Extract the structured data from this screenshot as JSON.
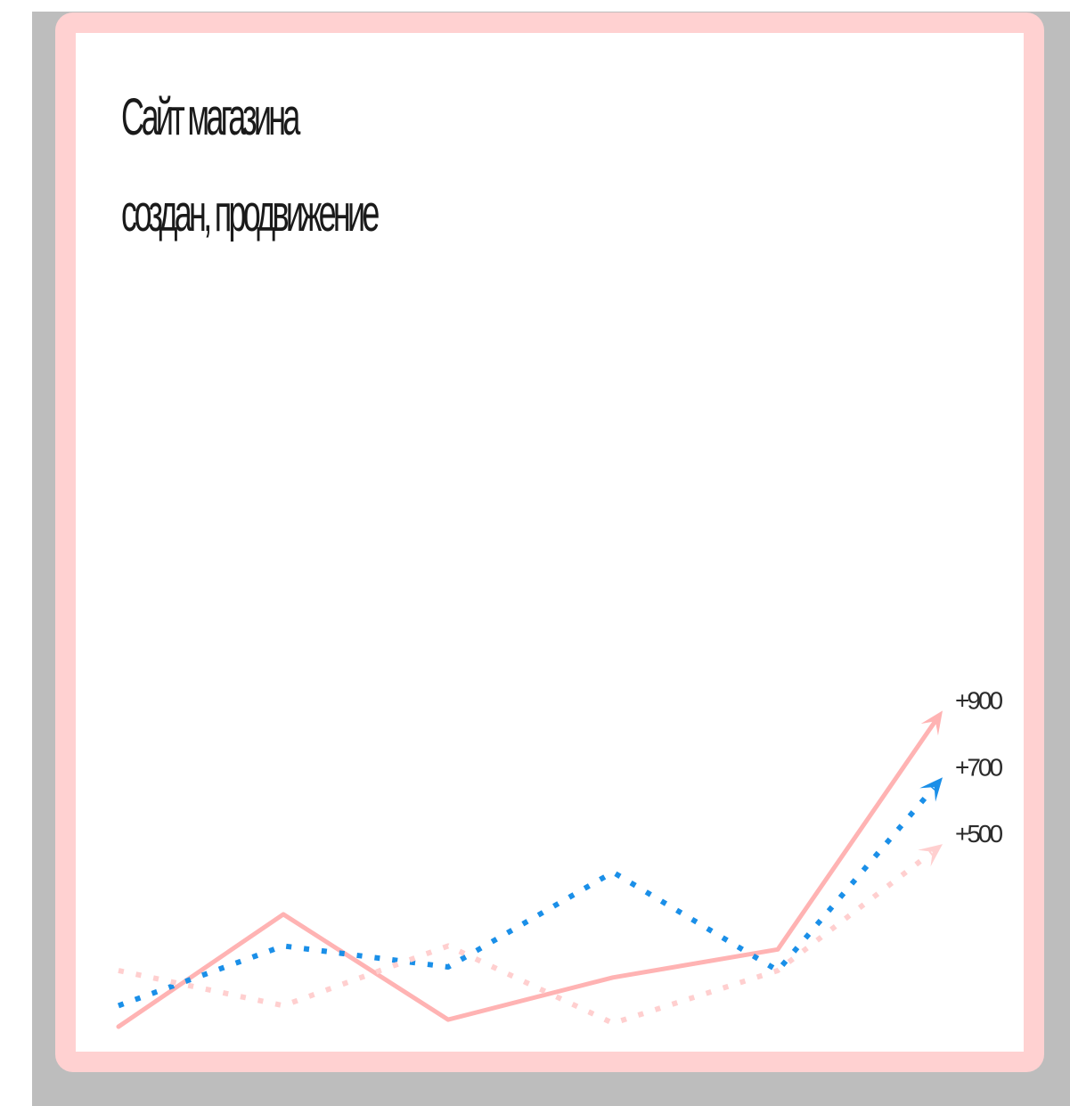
{
  "colors": {
    "background": "#bdbdbd",
    "frame": "#ffd1d1",
    "card": "#ffffff",
    "text": "#1a1a1a"
  },
  "chart_data": {
    "type": "line",
    "title": "Сайт магазина\nсоздан, продвижение",
    "xlabel": "",
    "ylabel": "",
    "grid": false,
    "legend": "none",
    "x": [
      0,
      1,
      2,
      3,
      4,
      5
    ],
    "ylim": [
      0,
      1000
    ],
    "series": [
      {
        "name": "+900",
        "color": "#ffb3b3",
        "style": "solid",
        "arrow": true,
        "values": [
          0,
          320,
          20,
          140,
          220,
          900
        ]
      },
      {
        "name": "+700",
        "color": "#1a8fe8",
        "style": "dotted",
        "arrow": true,
        "values": [
          60,
          230,
          170,
          440,
          160,
          710
        ]
      },
      {
        "name": "+500",
        "color": "#ffcfcf",
        "style": "dotted",
        "arrow": true,
        "values": [
          160,
          60,
          230,
          10,
          160,
          520
        ]
      }
    ]
  }
}
